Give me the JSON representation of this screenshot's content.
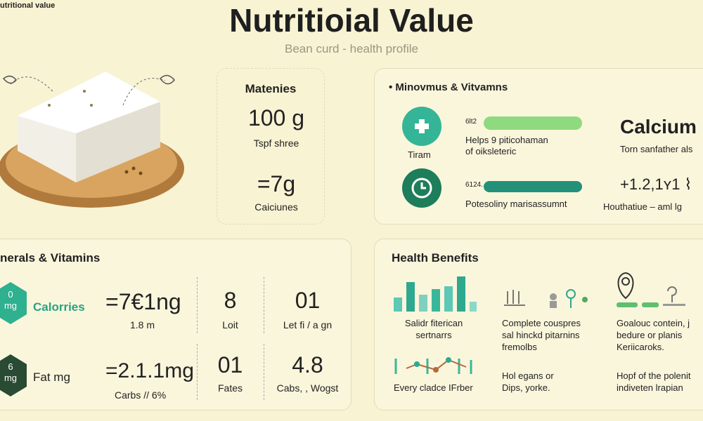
{
  "corner_label": "utritional value",
  "header": {
    "title": "Nutritioial Value",
    "subtitle": "Bean curd - health profile"
  },
  "serving_card": {
    "title": "Matenies",
    "amount": "100 g",
    "amount_caption": "Tspf shree",
    "protein": "=7g",
    "protein_caption": "Caiciunes"
  },
  "minerals_card": {
    "title": "Minovmus & Vitvamns",
    "rows": [
      {
        "icon_label": "Tiram",
        "code": "6lt2",
        "lines": [
          "Helps 9 piticohaman",
          "of oiksleteric"
        ]
      },
      {
        "code": "6124.",
        "lines": [
          "Potesoliny marisassumnt"
        ]
      }
    ],
    "highlight": "Calcium",
    "highlight_caption": "Torn sanfather als",
    "highlight_value": "+1.2,1ʏ1 ⌇",
    "highlight_value_caption": "Houthatiue – aml lg"
  },
  "vitamins_panel": {
    "title": "nerals & Vitamins",
    "rows": [
      {
        "badge": [
          "0",
          "mg"
        ],
        "name": "Calorries",
        "value": "=7€1ng",
        "value_caption": "1.8 m",
        "col2": "8",
        "col2_caption": "Loit",
        "col3": "01",
        "col3_caption": "Let fi / a gn"
      },
      {
        "badge": [
          "6",
          "mg"
        ],
        "name": "Fat mg",
        "value": "=2.1.1mg",
        "value_caption": "Carbs // 6%",
        "col2": "01",
        "col2_caption": "Fates",
        "col3": "4.8",
        "col3_caption": "Cabs, , Wogst"
      }
    ]
  },
  "benefits_panel": {
    "title": "Health Benefits",
    "items": [
      {
        "lines": [
          "Salidr fiterican",
          "sertnarrs"
        ]
      },
      {
        "lines": [
          "Complete couspres",
          "sal hinckd pitarnins",
          "fremolbs"
        ]
      },
      {
        "lines": [
          "Goalouc contein, j",
          "bedure or planis",
          "Keriicaroks."
        ]
      },
      {
        "lines": [
          "Every cladce IFrber"
        ]
      },
      {
        "lines": [
          "Hol egans or",
          "Dips, yorke."
        ]
      },
      {
        "lines": [
          "Hopf of the polenit",
          "indiveten lrapian"
        ]
      }
    ]
  }
}
